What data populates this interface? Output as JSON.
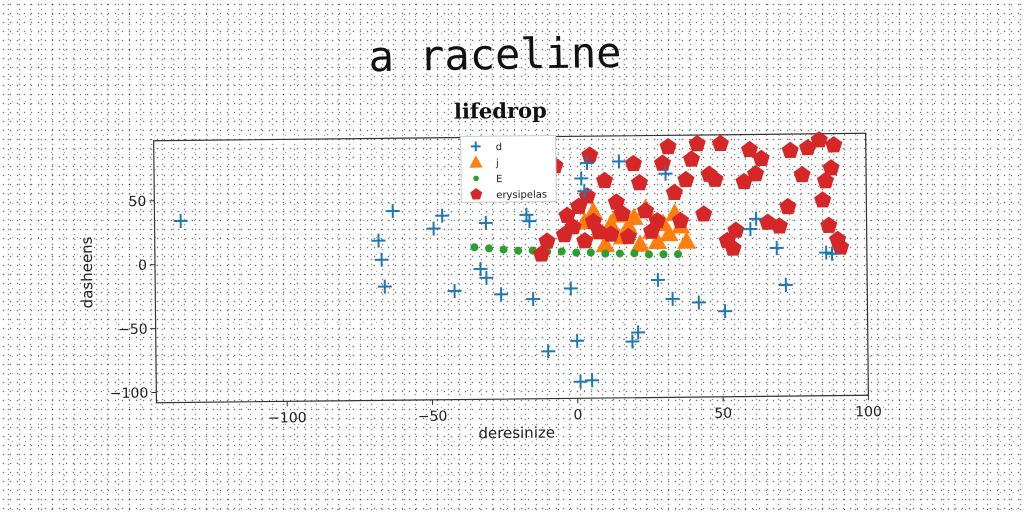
{
  "header": {
    "main_title": "a raceline"
  },
  "chart_data": {
    "type": "scatter",
    "title": "lifedrop",
    "xlabel": "deresinize",
    "ylabel": "dasheens",
    "xlim": [
      -145,
      100
    ],
    "ylim": [
      -108,
      97
    ],
    "xticks": [
      -100,
      -50,
      0,
      50,
      100
    ],
    "yticks": [
      -100,
      -50,
      0,
      50
    ],
    "tick_labels_x": [
      "−100",
      "−50",
      "0",
      "50",
      "100"
    ],
    "tick_labels_y": [
      "−100",
      "−50",
      "0",
      "50"
    ],
    "grid": false,
    "legend_position": "top-center",
    "series": [
      {
        "name": "d",
        "marker": "plus",
        "color": "#1f77b4",
        "points": [
          [
            -136,
            34
          ],
          [
            -68,
            17
          ],
          [
            -67,
            2
          ],
          [
            -66,
            -19
          ],
          [
            -63,
            40
          ],
          [
            -49,
            26
          ],
          [
            -46,
            36
          ],
          [
            -42,
            -23
          ],
          [
            -33,
            -6
          ],
          [
            -31,
            -13
          ],
          [
            -31,
            30
          ],
          [
            -26,
            -26
          ],
          [
            -18,
            70
          ],
          [
            -17,
            36
          ],
          [
            -16,
            31
          ],
          [
            -15,
            -30
          ],
          [
            -13,
            64
          ],
          [
            -10,
            -71
          ],
          [
            -2,
            -22
          ],
          [
            0,
            -63
          ],
          [
            1,
            -95
          ],
          [
            2,
            64
          ],
          [
            3,
            54
          ],
          [
            4,
            76
          ],
          [
            5,
            -94
          ],
          [
            15,
            77
          ],
          [
            19,
            -64
          ],
          [
            21,
            -57
          ],
          [
            28,
            -16
          ],
          [
            31,
            67
          ],
          [
            33,
            -31
          ],
          [
            42,
            -34
          ],
          [
            51,
            -41
          ],
          [
            60,
            23
          ],
          [
            62,
            31
          ],
          [
            69,
            8
          ],
          [
            72,
            -21
          ],
          [
            86,
            4
          ],
          [
            88,
            3
          ]
        ]
      },
      {
        "name": "j",
        "marker": "triangle",
        "color": "#ff7f0e",
        "points": [
          [
            3,
            30
          ],
          [
            6,
            38
          ],
          [
            8,
            22
          ],
          [
            10,
            12
          ],
          [
            12,
            28
          ],
          [
            14,
            35
          ],
          [
            16,
            18
          ],
          [
            18,
            26
          ],
          [
            20,
            33
          ],
          [
            22,
            12
          ],
          [
            24,
            40
          ],
          [
            26,
            22
          ],
          [
            28,
            14
          ],
          [
            30,
            28
          ],
          [
            32,
            20
          ],
          [
            34,
            36
          ],
          [
            36,
            26
          ],
          [
            38,
            14
          ]
        ]
      },
      {
        "name": "E",
        "marker": "dot",
        "color": "#2ca02c",
        "points": [
          [
            -35,
            11
          ],
          [
            -30,
            10
          ],
          [
            -25,
            9
          ],
          [
            -20,
            8
          ],
          [
            -15,
            8
          ],
          [
            -10,
            7
          ],
          [
            -5,
            7
          ],
          [
            0,
            6
          ],
          [
            5,
            6
          ],
          [
            10,
            5
          ],
          [
            15,
            5
          ],
          [
            20,
            5
          ],
          [
            25,
            4
          ],
          [
            30,
            4
          ],
          [
            35,
            4
          ]
        ]
      },
      {
        "name": "erysipelas",
        "marker": "pentagon",
        "color": "#d62728",
        "points": [
          [
            -12,
            5
          ],
          [
            -10,
            15
          ],
          [
            -7,
            74
          ],
          [
            -4,
            20
          ],
          [
            -3,
            35
          ],
          [
            -1,
            26
          ],
          [
            1,
            42
          ],
          [
            3,
            15
          ],
          [
            4,
            50
          ],
          [
            5,
            82
          ],
          [
            6,
            30
          ],
          [
            8,
            22
          ],
          [
            10,
            62
          ],
          [
            12,
            20
          ],
          [
            14,
            45
          ],
          [
            16,
            36
          ],
          [
            18,
            18
          ],
          [
            20,
            75
          ],
          [
            22,
            60
          ],
          [
            24,
            38
          ],
          [
            26,
            22
          ],
          [
            28,
            30
          ],
          [
            30,
            75
          ],
          [
            32,
            88
          ],
          [
            34,
            52
          ],
          [
            36,
            30
          ],
          [
            38,
            62
          ],
          [
            40,
            78
          ],
          [
            42,
            90
          ],
          [
            44,
            35
          ],
          [
            46,
            66
          ],
          [
            48,
            62
          ],
          [
            50,
            90
          ],
          [
            52,
            14
          ],
          [
            54,
            8
          ],
          [
            55,
            22
          ],
          [
            58,
            60
          ],
          [
            60,
            85
          ],
          [
            62,
            66
          ],
          [
            64,
            78
          ],
          [
            66,
            28
          ],
          [
            70,
            25
          ],
          [
            73,
            40
          ],
          [
            74,
            84
          ],
          [
            78,
            65
          ],
          [
            80,
            86
          ],
          [
            84,
            92
          ],
          [
            85,
            45
          ],
          [
            86,
            60
          ],
          [
            87,
            25
          ],
          [
            88,
            70
          ],
          [
            89,
            88
          ],
          [
            90,
            14
          ],
          [
            91,
            8
          ]
        ]
      }
    ]
  },
  "palette": {
    "d": "#1f77b4",
    "j": "#ff7f0e",
    "E": "#2ca02c",
    "erysipelas": "#d62728"
  }
}
